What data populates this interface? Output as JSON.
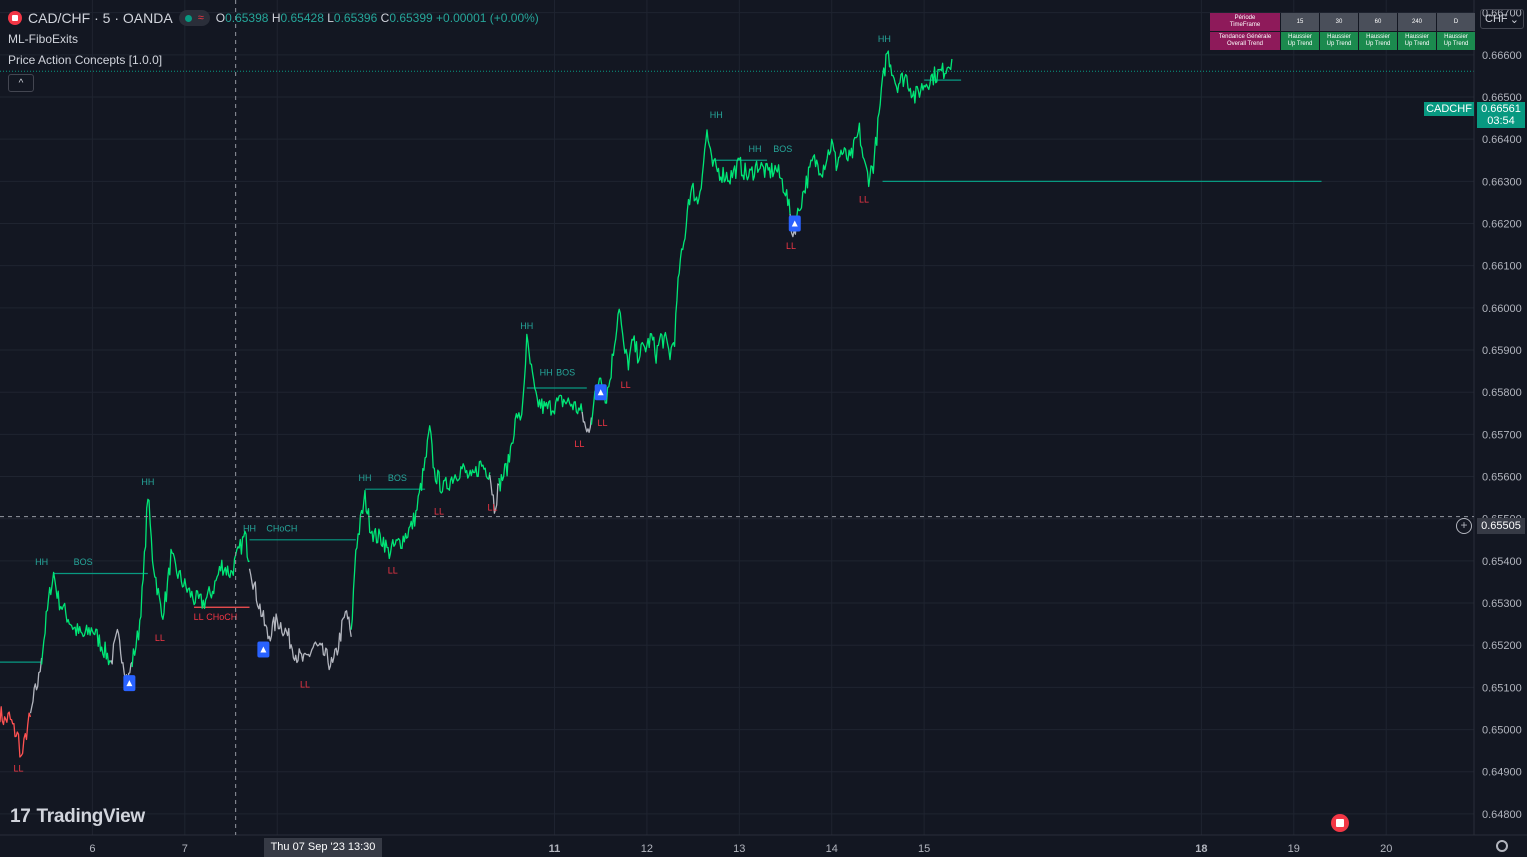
{
  "header": {
    "symbol": "CAD/CHF · 5 · OANDA",
    "ohlc": {
      "o_label": "O",
      "o": "0.65398",
      "h_label": "H",
      "h": "0.65428",
      "l_label": "L",
      "l": "0.65396",
      "c_label": "C",
      "c": "0.65399",
      "change": "+0.00001 (+0.00%)"
    },
    "indicators": [
      "ML-FiboExits",
      "Price Action Concepts [1.0.0]"
    ],
    "collapse_glyph": "^"
  },
  "currency_selector": {
    "value": "CHF",
    "chevron": "⌄"
  },
  "timeframe_table": {
    "header_label": "Période\nTimeFrame",
    "trend_label": "Tendance Générale\nOverall Trend",
    "columns": [
      "15",
      "30",
      "60",
      "240",
      "D"
    ],
    "values": [
      "Haussier\nUp Trend",
      "Haussier\nUp Trend",
      "Haussier\nUp Trend",
      "Haussier\nUp Trend",
      "Haussier\nUp Trend"
    ],
    "colors": {
      "header": "#8e1a5a",
      "column": "#4a4f5a",
      "value": "#1b8a4e"
    }
  },
  "price_tags": {
    "symbol_tag": "CADCHF",
    "last_price": "0.66561",
    "countdown": "03:54",
    "crosshair_price": "0.65505",
    "crosshair_time": "Thu 07 Sep '23  13:30"
  },
  "branding": {
    "logo_mark": "17",
    "logo_text": "TradingView"
  },
  "chart_data": {
    "type": "line",
    "title": "CAD/CHF · 5 · OANDA",
    "ylim": [
      0.6475,
      0.6673
    ],
    "y_ticks": [
      0.648,
      0.649,
      0.65,
      0.651,
      0.652,
      0.653,
      0.654,
      0.655,
      0.656,
      0.657,
      0.658,
      0.659,
      0.66,
      0.661,
      0.662,
      0.663,
      0.664,
      0.665,
      0.666,
      0.667
    ],
    "y_tick_labels": [
      "0.64800",
      "0.64900",
      "0.65000",
      "0.65100",
      "0.65200",
      "0.65300",
      "0.65400",
      "0.65500",
      "0.65600",
      "0.65700",
      "0.65800",
      "0.65900",
      "0.66000",
      "0.66100",
      "0.66200",
      "0.66300",
      "0.66400",
      "0.66500",
      "0.66600",
      "0.66700"
    ],
    "x_ticks": [
      {
        "day": 6,
        "label": "6",
        "bold": false
      },
      {
        "day": 7,
        "label": "7",
        "bold": false
      },
      {
        "day": 8,
        "label": "",
        "bold": false
      },
      {
        "day": 11,
        "label": "11",
        "bold": true
      },
      {
        "day": 12,
        "label": "12",
        "bold": false
      },
      {
        "day": 13,
        "label": "13",
        "bold": false
      },
      {
        "day": 14,
        "label": "14",
        "bold": false
      },
      {
        "day": 15,
        "label": "15",
        "bold": false
      },
      {
        "day": 18,
        "label": "18",
        "bold": true
      },
      {
        "day": 19,
        "label": "19",
        "bold": false
      },
      {
        "day": 20,
        "label": "20",
        "bold": false
      }
    ],
    "x_range_days": [
      5.0,
      20.95
    ],
    "colors": {
      "bull": "#00e676",
      "neutral": "#b2b5be",
      "bear": "#ff5252",
      "label_bull": "#26a69a",
      "label_bear": "#f23645",
      "level": "#089981"
    },
    "series": [
      {
        "color_key": "bear",
        "points": [
          [
            5.0,
            0.6504
          ],
          [
            5.05,
            0.6502
          ],
          [
            5.1,
            0.6503
          ],
          [
            5.15,
            0.65
          ],
          [
            5.2,
            0.6498
          ],
          [
            5.23,
            0.6493
          ],
          [
            5.26,
            0.6496
          ],
          [
            5.3,
            0.6501
          ],
          [
            5.33,
            0.6503
          ]
        ]
      },
      {
        "color_key": "neutral",
        "points": [
          [
            5.33,
            0.6503
          ],
          [
            5.37,
            0.6508
          ],
          [
            5.42,
            0.6512
          ],
          [
            5.45,
            0.6517
          ]
        ]
      },
      {
        "color_key": "bull",
        "points": [
          [
            5.45,
            0.6517
          ],
          [
            5.5,
            0.6526
          ],
          [
            5.55,
            0.6534
          ],
          [
            5.58,
            0.6537
          ],
          [
            5.63,
            0.6531
          ],
          [
            5.7,
            0.6528
          ],
          [
            5.8,
            0.6524
          ],
          [
            5.9,
            0.6522
          ],
          [
            6.0,
            0.6524
          ],
          [
            6.1,
            0.652
          ],
          [
            6.2,
            0.6516
          ]
        ]
      },
      {
        "color_key": "neutral",
        "points": [
          [
            6.2,
            0.6516
          ],
          [
            6.27,
            0.6522
          ],
          [
            6.33,
            0.6517
          ],
          [
            6.38,
            0.6511
          ],
          [
            6.43,
            0.6516
          ]
        ]
      },
      {
        "color_key": "bull",
        "points": [
          [
            6.43,
            0.6516
          ],
          [
            6.5,
            0.6523
          ],
          [
            6.55,
            0.6535
          ],
          [
            6.6,
            0.6556
          ],
          [
            6.65,
            0.6541
          ],
          [
            6.7,
            0.6534
          ],
          [
            6.75,
            0.6527
          ],
          [
            6.8,
            0.6532
          ],
          [
            6.85,
            0.6541
          ],
          [
            6.9,
            0.6538
          ],
          [
            7.0,
            0.6534
          ],
          [
            7.1,
            0.6531
          ],
          [
            7.2,
            0.653
          ],
          [
            7.3,
            0.6533
          ],
          [
            7.4,
            0.6539
          ],
          [
            7.5,
            0.6537
          ],
          [
            7.6,
            0.6543
          ],
          [
            7.65,
            0.6546
          ],
          [
            7.7,
            0.654
          ]
        ]
      },
      {
        "color_key": "neutral",
        "points": [
          [
            7.7,
            0.654
          ],
          [
            7.75,
            0.6534
          ],
          [
            7.8,
            0.653
          ],
          [
            7.85,
            0.6526
          ],
          [
            7.9,
            0.6522
          ],
          [
            8.0,
            0.6526
          ],
          [
            8.1,
            0.6523
          ],
          [
            8.2,
            0.6518
          ],
          [
            8.3,
            0.6516
          ],
          [
            8.4,
            0.652
          ],
          [
            8.5,
            0.6518
          ],
          [
            8.6,
            0.6515
          ],
          [
            8.65,
            0.6519
          ],
          [
            8.7,
            0.6524
          ],
          [
            8.75,
            0.6528
          ],
          [
            8.8,
            0.6522
          ]
        ]
      },
      {
        "color_key": "bull",
        "points": [
          [
            8.8,
            0.6522
          ],
          [
            8.85,
            0.6543
          ],
          [
            8.9,
            0.6549
          ],
          [
            8.95,
            0.6555
          ],
          [
            9.0,
            0.6549
          ],
          [
            9.05,
            0.6546
          ],
          [
            9.15,
            0.6545
          ],
          [
            9.2,
            0.6542
          ],
          [
            9.25,
            0.6543
          ],
          [
            9.35,
            0.6545
          ],
          [
            9.45,
            0.6548
          ],
          [
            9.5,
            0.6551
          ],
          [
            9.55,
            0.6557
          ],
          [
            9.6,
            0.6563
          ],
          [
            9.65,
            0.6571
          ],
          [
            9.7,
            0.6561
          ],
          [
            9.8,
            0.6557
          ],
          [
            9.9,
            0.656
          ],
          [
            10.0,
            0.6562
          ],
          [
            10.1,
            0.6559
          ],
          [
            10.2,
            0.6563
          ],
          [
            10.3,
            0.6561
          ]
        ]
      },
      {
        "color_key": "neutral",
        "points": [
          [
            10.3,
            0.6561
          ],
          [
            10.35,
            0.6553
          ],
          [
            10.4,
            0.6558
          ]
        ]
      },
      {
        "color_key": "bull",
        "points": [
          [
            10.4,
            0.6558
          ],
          [
            10.5,
            0.6563
          ],
          [
            10.55,
            0.657
          ],
          [
            10.6,
            0.6575
          ],
          [
            10.63,
            0.6572
          ],
          [
            10.66,
            0.6579
          ],
          [
            10.7,
            0.6592
          ],
          [
            10.75,
            0.6585
          ],
          [
            10.8,
            0.6578
          ],
          [
            10.9,
            0.6576
          ],
          [
            11.0,
            0.6577
          ],
          [
            11.1,
            0.6578
          ],
          [
            11.2,
            0.6577
          ],
          [
            11.3,
            0.6575
          ]
        ]
      },
      {
        "color_key": "neutral",
        "points": [
          [
            11.3,
            0.6575
          ],
          [
            11.35,
            0.657
          ],
          [
            11.4,
            0.6574
          ]
        ]
      },
      {
        "color_key": "bull",
        "points": [
          [
            11.4,
            0.6574
          ],
          [
            11.45,
            0.658
          ],
          [
            11.5,
            0.6585
          ],
          [
            11.55,
            0.6578
          ],
          [
            11.6,
            0.6583
          ],
          [
            11.65,
            0.6592
          ],
          [
            11.7,
            0.6601
          ],
          [
            11.75,
            0.659
          ],
          [
            11.8,
            0.6587
          ],
          [
            11.85,
            0.6592
          ],
          [
            11.9,
            0.6589
          ],
          [
            12.0,
            0.6591
          ],
          [
            12.05,
            0.6593
          ],
          [
            12.1,
            0.6589
          ],
          [
            12.15,
            0.6593
          ],
          [
            12.2,
            0.6592
          ],
          [
            12.25,
            0.6589
          ],
          [
            12.3,
            0.6593
          ],
          [
            12.35,
            0.6609
          ],
          [
            12.4,
            0.6615
          ],
          [
            12.45,
            0.6626
          ],
          [
            12.5,
            0.6628
          ],
          [
            12.55,
            0.6625
          ],
          [
            12.6,
            0.6632
          ],
          [
            12.65,
            0.6642
          ],
          [
            12.7,
            0.6634
          ],
          [
            12.8,
            0.6632
          ],
          [
            12.9,
            0.6631
          ],
          [
            13.0,
            0.6634
          ],
          [
            13.1,
            0.6631
          ],
          [
            13.2,
            0.6634
          ],
          [
            13.3,
            0.6632
          ],
          [
            13.4,
            0.6633
          ],
          [
            13.5,
            0.6628
          ],
          [
            13.55,
            0.6622
          ]
        ]
      },
      {
        "color_key": "neutral",
        "points": [
          [
            13.55,
            0.6622
          ],
          [
            13.58,
            0.6617
          ],
          [
            13.62,
            0.6621
          ]
        ]
      },
      {
        "color_key": "bull",
        "points": [
          [
            13.62,
            0.6621
          ],
          [
            13.7,
            0.6628
          ],
          [
            13.8,
            0.6635
          ],
          [
            13.9,
            0.6633
          ],
          [
            14.0,
            0.6639
          ],
          [
            14.05,
            0.6634
          ],
          [
            14.1,
            0.6637
          ],
          [
            14.2,
            0.6635
          ],
          [
            14.3,
            0.6642
          ],
          [
            14.35,
            0.6634
          ],
          [
            14.4,
            0.6631
          ],
          [
            14.45,
            0.6634
          ],
          [
            14.5,
            0.6643
          ],
          [
            14.55,
            0.6653
          ],
          [
            14.6,
            0.6661
          ],
          [
            14.65,
            0.6657
          ],
          [
            14.7,
            0.6653
          ],
          [
            14.8,
            0.6655
          ],
          [
            14.9,
            0.665
          ],
          [
            15.0,
            0.6653
          ],
          [
            15.1,
            0.6655
          ],
          [
            15.2,
            0.6656
          ],
          [
            15.3,
            0.6659
          ]
        ]
      }
    ],
    "levels": [
      {
        "x": [
          5.0,
          5.45
        ],
        "y": 0.6516,
        "color_key": "level"
      },
      {
        "x": [
          5.58,
          6.6
        ],
        "y": 0.6537,
        "color_key": "level"
      },
      {
        "x": [
          7.1,
          7.7
        ],
        "y": 0.6529,
        "color_key": "bear"
      },
      {
        "x": [
          7.7,
          8.85
        ],
        "y": 0.6545,
        "color_key": "level"
      },
      {
        "x": [
          8.95,
          9.6
        ],
        "y": 0.6557,
        "color_key": "level"
      },
      {
        "x": [
          10.7,
          11.35
        ],
        "y": 0.6581,
        "color_key": "level"
      },
      {
        "x": [
          12.7,
          13.3
        ],
        "y": 0.6635,
        "color_key": "level"
      },
      {
        "x": [
          15.0,
          15.4
        ],
        "y": 0.6654,
        "color_key": "level"
      },
      {
        "x": [
          14.55,
          19.3
        ],
        "y": 0.663,
        "color_key": "level"
      }
    ],
    "labels": [
      {
        "text": "LL",
        "x": 5.2,
        "y": 0.649,
        "color_key": "label_bear"
      },
      {
        "text": "HH",
        "x": 5.45,
        "y": 0.6539,
        "color_key": "label_bull"
      },
      {
        "text": "BOS",
        "x": 5.9,
        "y": 0.6539,
        "color_key": "label_bull"
      },
      {
        "text": "HH",
        "x": 6.6,
        "y": 0.6558,
        "color_key": "label_bull"
      },
      {
        "text": "LL",
        "x": 6.73,
        "y": 0.6521,
        "color_key": "label_bear"
      },
      {
        "text": "LL",
        "x": 7.15,
        "y": 0.6526,
        "color_key": "label_bear"
      },
      {
        "text": "CHoCH",
        "x": 7.4,
        "y": 0.6526,
        "color_key": "label_bear"
      },
      {
        "text": "HH",
        "x": 7.7,
        "y": 0.6547,
        "color_key": "label_bull"
      },
      {
        "text": "CHoCH",
        "x": 8.05,
        "y": 0.6547,
        "color_key": "label_bull"
      },
      {
        "text": "LL",
        "x": 8.3,
        "y": 0.651,
        "color_key": "label_bear"
      },
      {
        "text": "HH",
        "x": 8.95,
        "y": 0.6559,
        "color_key": "label_bull"
      },
      {
        "text": "BOS",
        "x": 9.3,
        "y": 0.6559,
        "color_key": "label_bull"
      },
      {
        "text": "LL",
        "x": 9.25,
        "y": 0.6537,
        "color_key": "label_bear"
      },
      {
        "text": "LL",
        "x": 9.75,
        "y": 0.6551,
        "color_key": "label_bear"
      },
      {
        "text": "LL",
        "x": 10.33,
        "y": 0.6552,
        "color_key": "label_bear"
      },
      {
        "text": "HH",
        "x": 10.7,
        "y": 0.6595,
        "color_key": "label_bull"
      },
      {
        "text": "HH",
        "x": 10.91,
        "y": 0.6584,
        "color_key": "label_bull"
      },
      {
        "text": "BOS",
        "x": 11.12,
        "y": 0.6584,
        "color_key": "label_bull"
      },
      {
        "text": "LL",
        "x": 11.27,
        "y": 0.6567,
        "color_key": "label_bear"
      },
      {
        "text": "LL",
        "x": 11.52,
        "y": 0.6572,
        "color_key": "label_bear"
      },
      {
        "text": "LL",
        "x": 11.77,
        "y": 0.6581,
        "color_key": "label_bear"
      },
      {
        "text": "HH",
        "x": 12.75,
        "y": 0.6645,
        "color_key": "label_bull"
      },
      {
        "text": "HH",
        "x": 13.17,
        "y": 0.6637,
        "color_key": "label_bull"
      },
      {
        "text": "BOS",
        "x": 13.47,
        "y": 0.6637,
        "color_key": "label_bull"
      },
      {
        "text": "LL",
        "x": 13.56,
        "y": 0.6614,
        "color_key": "label_bear"
      },
      {
        "text": "LL",
        "x": 14.35,
        "y": 0.6625,
        "color_key": "label_bear"
      },
      {
        "text": "HH",
        "x": 14.57,
        "y": 0.6663,
        "color_key": "label_bull"
      }
    ],
    "signals": [
      {
        "x": 6.4,
        "y": 0.6511
      },
      {
        "x": 7.85,
        "y": 0.6519
      },
      {
        "x": 11.5,
        "y": 0.658
      },
      {
        "x": 13.6,
        "y": 0.662
      }
    ]
  }
}
